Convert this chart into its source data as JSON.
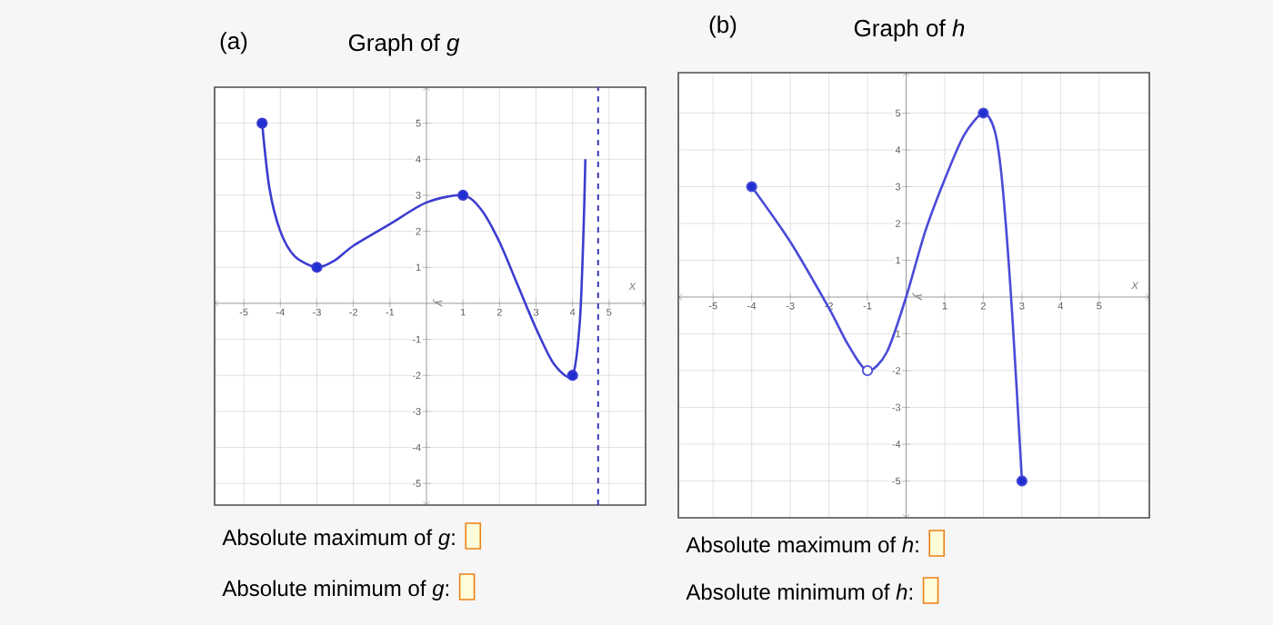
{
  "chart_data": [
    {
      "type": "line",
      "title": "Graph of *g*",
      "xlabel": "*x*",
      "ylabel": "*y*",
      "annotations": [
        "(a)",
        "Absolute maximum of *g*:",
        "Absolute minimum of *g*:"
      ],
      "xlim": [
        -5.8,
        6
      ],
      "ylim": [
        -5.6,
        6
      ],
      "xticks": [
        -5,
        -4,
        -3,
        -2,
        -1,
        {
          "value": 0,
          "label": null
        },
        1,
        2,
        3,
        4,
        5
      ],
      "yticks": [
        -5,
        -4,
        -3,
        -2,
        -1,
        {
          "value": 0,
          "label": null
        },
        1,
        2,
        3,
        4,
        5
      ],
      "grid": true,
      "ref_lines": [
        {
          "axis": "x",
          "value": 4.7,
          "color": "#3a3ab8",
          "line_style": "dashed"
        }
      ],
      "series": [
        {
          "color": "#3c3cd0",
          "marker": "none",
          "x": [
            -4.5,
            -4.3,
            -4,
            -3.6,
            -3,
            -2.5,
            -2,
            -1,
            0,
            1,
            1.5,
            2,
            2.5,
            3,
            3.5,
            4,
            4.2,
            4.3,
            4.35
          ],
          "values": [
            5,
            3.2,
            2,
            1.3,
            1,
            1.2,
            1.6,
            2.2,
            2.8,
            3,
            2.6,
            1.7,
            0.5,
            -0.7,
            -1.7,
            -2,
            -0.5,
            2,
            4
          ]
        },
        {
          "type": "scatter",
          "color": "#1f2fd0",
          "marker": "circle",
          "x": [
            -4.5,
            -3,
            1,
            4
          ],
          "values": [
            5,
            1,
            3,
            -2
          ]
        }
      ]
    },
    {
      "type": "line",
      "title": "Graph of *h*",
      "xlabel": "*x*",
      "ylabel": "*y*",
      "annotations": [
        "(b)",
        "Absolute maximum of *h*:",
        "Absolute minimum of *h*:"
      ],
      "xlim": [
        -5.9,
        6.3
      ],
      "ylim": [
        -6,
        6.1
      ],
      "xticks": [
        -5,
        -4,
        -3,
        -2,
        -1,
        {
          "value": 0,
          "label": null
        },
        1,
        2,
        3,
        4,
        5
      ],
      "yticks": [
        -5,
        -4,
        -3,
        -2,
        -1,
        {
          "value": 0,
          "label": null
        },
        1,
        2,
        3,
        4,
        5
      ],
      "grid": true,
      "series": [
        {
          "color": "#4a4ad8",
          "marker": "none",
          "x": [
            -4,
            -3,
            -2,
            -1.5,
            -1,
            -0.5,
            0,
            0.5,
            1,
            1.5,
            2,
            2.3,
            2.5,
            2.75,
            3
          ],
          "values": [
            3,
            1.5,
            -0.3,
            -1.3,
            -2,
            -1.5,
            0,
            1.8,
            3.2,
            4.4,
            5,
            4.5,
            3,
            -0.5,
            -5
          ]
        },
        {
          "type": "scatter",
          "color": "#1f2fd0",
          "marker": "circle",
          "x": [
            -4,
            2,
            3
          ],
          "values": [
            3,
            5,
            -5
          ]
        },
        {
          "type": "scatter",
          "color": "#ffffff",
          "marker": "circle",
          "x": [
            -1
          ],
          "values": [
            -2
          ]
        }
      ]
    }
  ]
}
